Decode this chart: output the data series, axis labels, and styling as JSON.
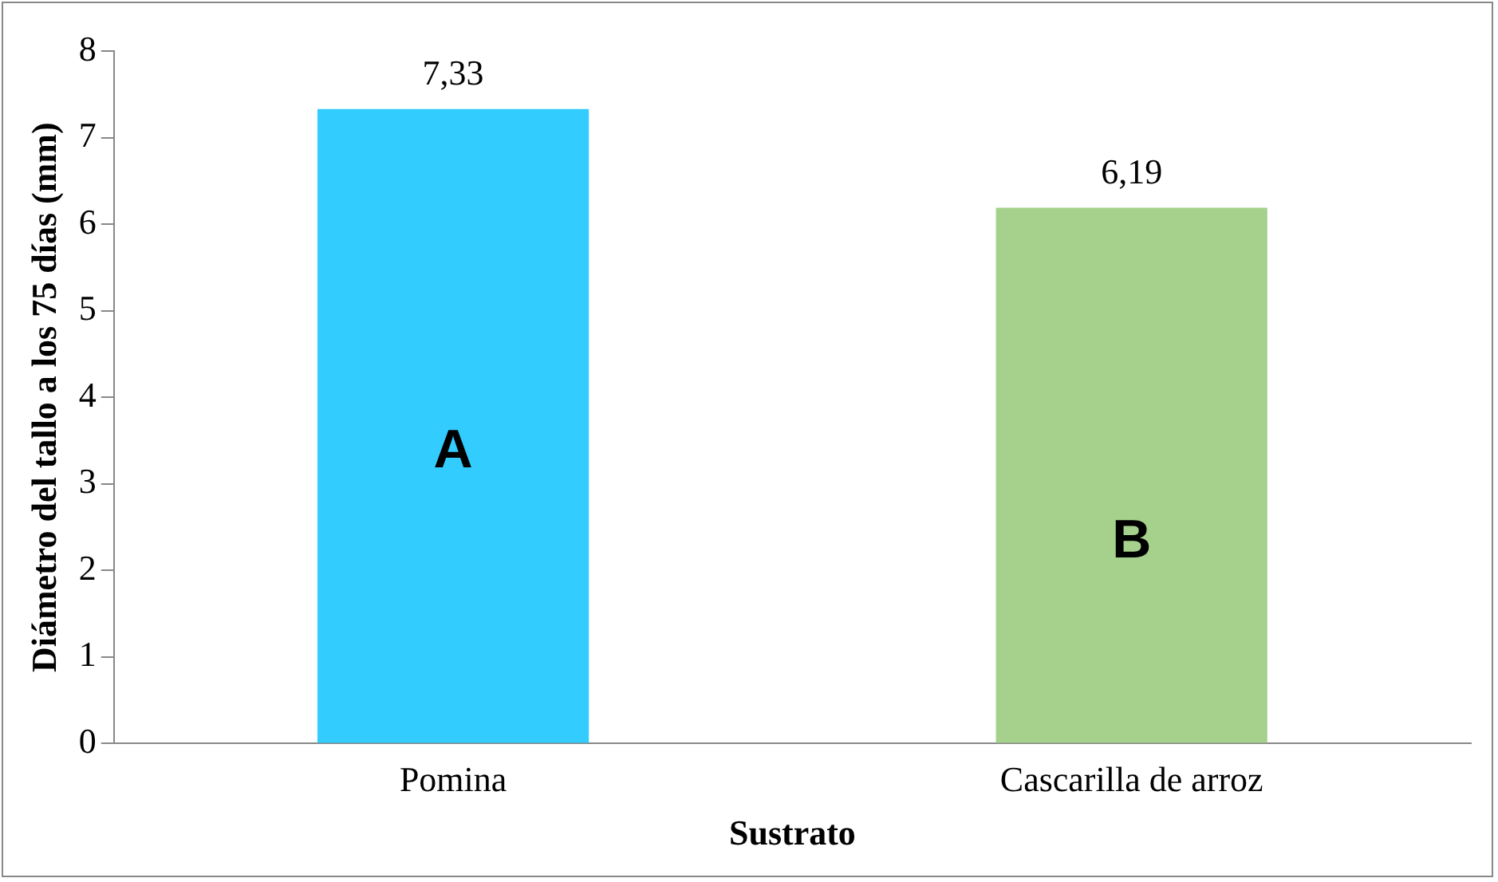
{
  "chart_data": {
    "type": "bar",
    "categories": [
      "Pomina",
      "Cascarilla de arroz"
    ],
    "values": [
      7.33,
      6.19
    ],
    "colors": [
      "#33ccff",
      "#a6d18c"
    ],
    "value_labels": [
      "7,33",
      "6,19"
    ],
    "xlabel": "Sustrato",
    "ylabel": "Diámetro del tallo a los 75 días (mm)",
    "ylim": [
      0,
      8
    ],
    "yticks": [
      0,
      1,
      2,
      3,
      4,
      5,
      6,
      7,
      8
    ],
    "grid": false,
    "legend": false,
    "annotations": [
      "A",
      "B"
    ]
  }
}
